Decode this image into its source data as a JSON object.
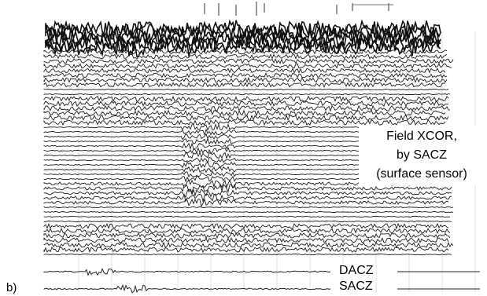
{
  "panel_label": "b)",
  "annotation": {
    "line1": "Field XCOR,",
    "line2": "by SACZ",
    "line3": "(surface sensor)"
  },
  "traces": {
    "upper": "DACZ",
    "lower": "SACZ"
  }
}
